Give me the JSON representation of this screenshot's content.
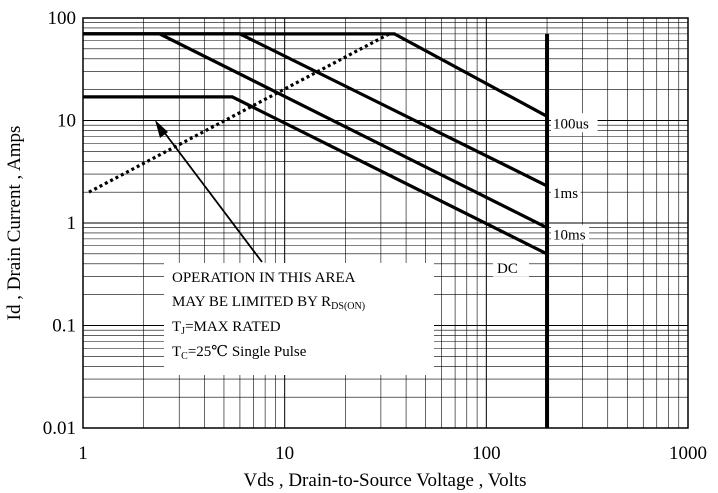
{
  "chart_data": {
    "type": "line",
    "scale": {
      "x": "log",
      "y": "log"
    },
    "xlim": [
      1,
      1000
    ],
    "ylim": [
      0.01,
      100
    ],
    "grid": true,
    "xlabel": "Vds , Drain-to-Source Voltage , Volts",
    "ylabel": "Id , Drain Current , Amps",
    "x_ticks": [
      "1",
      "10",
      "100",
      "1000"
    ],
    "y_ticks": [
      "0.01",
      "0.1",
      "1",
      "10",
      "100"
    ],
    "series": [
      {
        "name": "100us",
        "x": [
          1,
          35,
          200
        ],
        "y": [
          70,
          70,
          11
        ]
      },
      {
        "name": "1ms",
        "x": [
          1,
          6,
          200
        ],
        "y": [
          70,
          70,
          2.3
        ]
      },
      {
        "name": "10ms",
        "x": [
          1,
          2.4,
          200
        ],
        "y": [
          70,
          70,
          0.9
        ]
      },
      {
        "name": "DC",
        "x": [
          1,
          5.5,
          200
        ],
        "y": [
          17,
          17,
          0.5
        ]
      }
    ],
    "vertical_limit": {
      "x": 200,
      "y": [
        0.01,
        70
      ]
    },
    "rds_on_line": {
      "x": [
        1,
        33
      ],
      "y": [
        2.0,
        70
      ]
    },
    "annotation": {
      "line1": "OPERATION IN THIS AREA",
      "line2_main": "MAY BE LIMITED BY R",
      "line2_sub": "DS(ON)",
      "line3_main": "T",
      "line3_sub": "J",
      "line3_rest": "=MAX RATED",
      "line4_main": "T",
      "line4_sub": "C",
      "line4_rest": "=25℃  Single Pulse"
    }
  }
}
